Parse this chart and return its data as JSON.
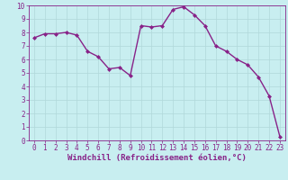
{
  "x": [
    0,
    1,
    2,
    3,
    4,
    5,
    6,
    7,
    8,
    9,
    10,
    11,
    12,
    13,
    14,
    15,
    16,
    17,
    18,
    19,
    20,
    21,
    22,
    23
  ],
  "y": [
    7.6,
    7.9,
    7.9,
    8.0,
    7.8,
    6.6,
    6.2,
    5.3,
    5.4,
    4.8,
    8.5,
    8.4,
    8.5,
    9.7,
    9.9,
    9.3,
    8.5,
    7.0,
    6.6,
    6.0,
    5.6,
    4.7,
    3.3,
    0.3
  ],
  "line_color": "#882288",
  "marker": "D",
  "marker_size": 2,
  "bg_color": "#c8eef0",
  "grid_color": "#b0d8da",
  "xlabel": "Windchill (Refroidissement éolien,°C)",
  "xlim": [
    -0.5,
    23.5
  ],
  "ylim": [
    0,
    10
  ],
  "yticks": [
    0,
    1,
    2,
    3,
    4,
    5,
    6,
    7,
    8,
    9,
    10
  ],
  "xticks": [
    0,
    1,
    2,
    3,
    4,
    5,
    6,
    7,
    8,
    9,
    10,
    11,
    12,
    13,
    14,
    15,
    16,
    17,
    18,
    19,
    20,
    21,
    22,
    23
  ],
  "tick_fontsize": 5.5,
  "xlabel_fontsize": 6.5
}
